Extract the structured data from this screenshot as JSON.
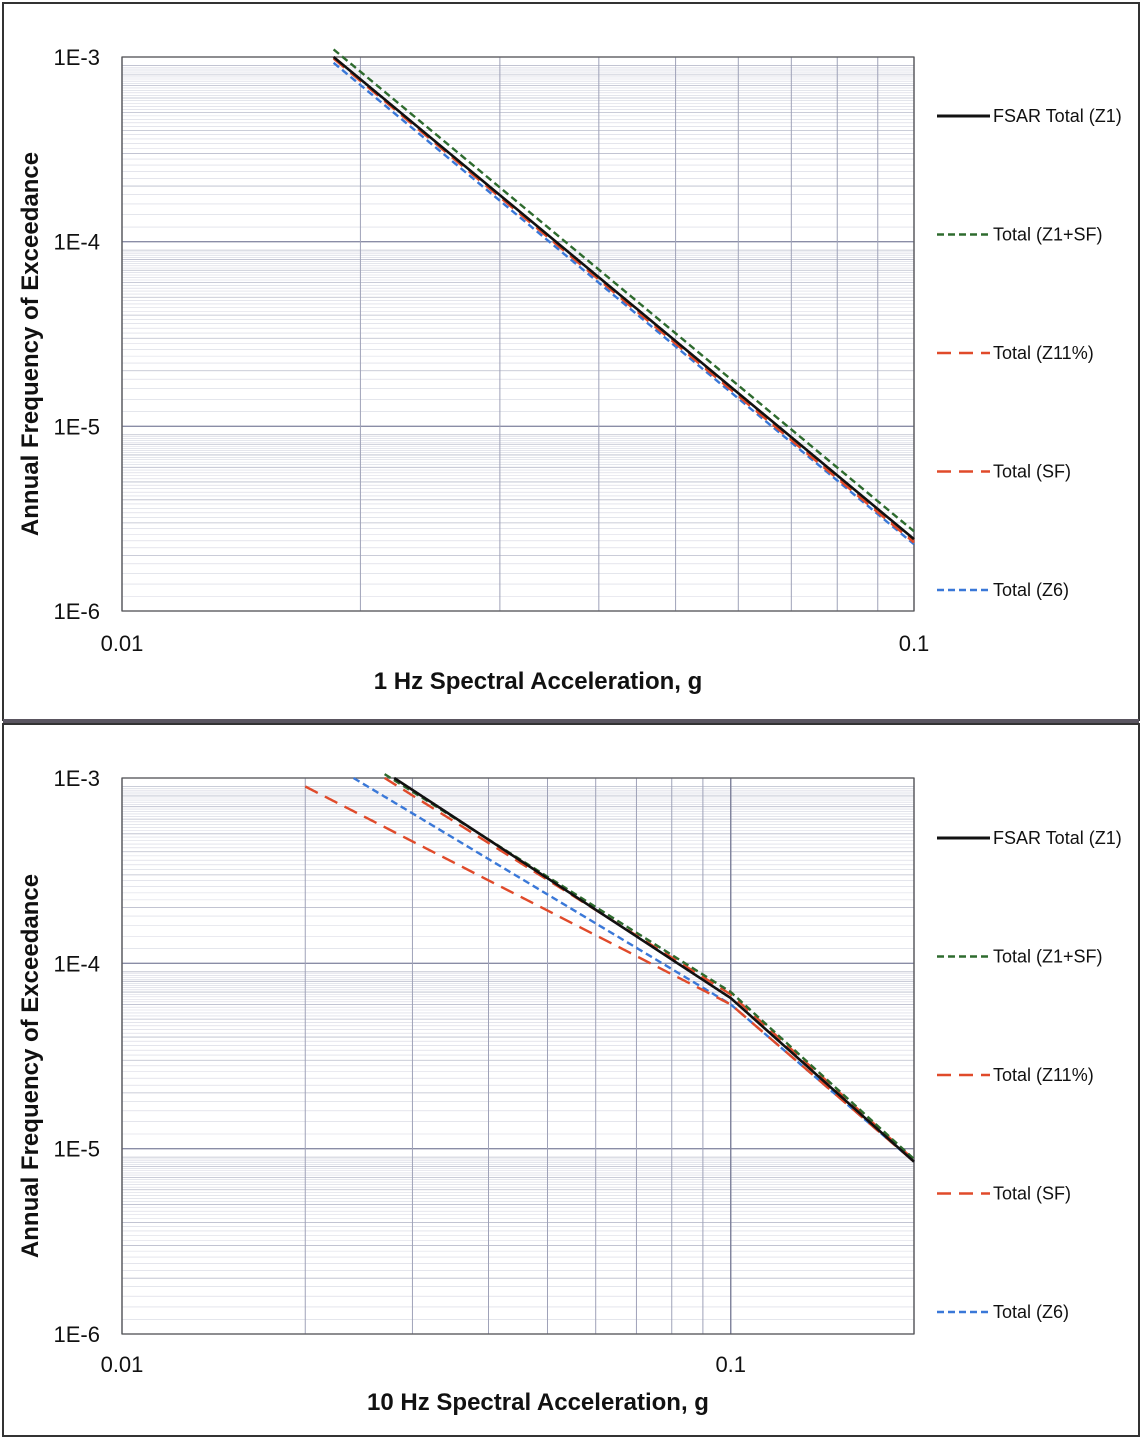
{
  "chart_data": [
    {
      "type": "line",
      "xlabel": "1 Hz Spectral Acceleration, g",
      "ylabel": "Annual Frequency of Exceedance",
      "xscale": "log",
      "yscale": "log",
      "xlim": [
        0.01,
        0.1
      ],
      "ylim": [
        1e-06,
        0.001
      ],
      "xticks": [
        "0.01",
        "0.1"
      ],
      "yticks": [
        "1E-6",
        "1E-5",
        "1E-4",
        "1E-3"
      ],
      "grid": true,
      "legend_position": "right",
      "series": [
        {
          "name": "FSAR Total (Z1)",
          "color": "#111111",
          "dash": "solid",
          "x": [
            0.0185,
            0.1
          ],
          "y": [
            0.001,
            2.45e-06
          ]
        },
        {
          "name": "Total (Z1+SF)",
          "color": "#2e6b2e",
          "dash": "short-dash",
          "x": [
            0.0185,
            0.1
          ],
          "y": [
            0.0011,
            2.7e-06
          ]
        },
        {
          "name": "Total (Z11%)",
          "color": "#e04a2a",
          "dash": "long-dash",
          "x": [
            0.0185,
            0.1
          ],
          "y": [
            0.001,
            2.4e-06
          ]
        },
        {
          "name": "Total (SF)",
          "color": "#e04a2a",
          "dash": "long-dash",
          "x": [
            0.0185,
            0.1
          ],
          "y": [
            0.00098,
            2.35e-06
          ]
        },
        {
          "name": "Total (Z6)",
          "color": "#3a78d8",
          "dash": "short-dash",
          "x": [
            0.0185,
            0.1
          ],
          "y": [
            0.00093,
            2.3e-06
          ]
        }
      ]
    },
    {
      "type": "line",
      "xlabel": "10 Hz Spectral Acceleration, g",
      "ylabel": "Annual Frequency of Exceedance",
      "xscale": "log",
      "yscale": "log",
      "xlim": [
        0.01,
        0.2
      ],
      "ylim": [
        1e-06,
        0.001
      ],
      "xticks": [
        "0.01",
        "0.1"
      ],
      "yticks": [
        "1E-6",
        "1E-5",
        "1E-4",
        "1E-3"
      ],
      "grid": true,
      "legend_position": "right",
      "series": [
        {
          "name": "FSAR Total (Z1)",
          "color": "#111111",
          "dash": "solid",
          "x": [
            0.028,
            0.1,
            0.2
          ],
          "y": [
            0.001,
            6.5e-05,
            8.5e-06
          ]
        },
        {
          "name": "Total (Z1+SF)",
          "color": "#2e6b2e",
          "dash": "short-dash",
          "x": [
            0.027,
            0.1,
            0.2
          ],
          "y": [
            0.00105,
            7e-05,
            8.8e-06
          ]
        },
        {
          "name": "Total (Z11%)",
          "color": "#e04a2a",
          "dash": "long-dash",
          "x": [
            0.027,
            0.1,
            0.2
          ],
          "y": [
            0.001,
            6.8e-05,
            8.7e-06
          ]
        },
        {
          "name": "Total (SF)",
          "color": "#e04a2a",
          "dash": "long-dash",
          "x": [
            0.02,
            0.1,
            0.2
          ],
          "y": [
            0.0009,
            6e-05,
            8.5e-06
          ]
        },
        {
          "name": "Total (Z6)",
          "color": "#3a78d8",
          "dash": "short-dash",
          "x": [
            0.024,
            0.1,
            0.2
          ],
          "y": [
            0.001,
            6e-05,
            8.5e-06
          ]
        }
      ]
    }
  ]
}
